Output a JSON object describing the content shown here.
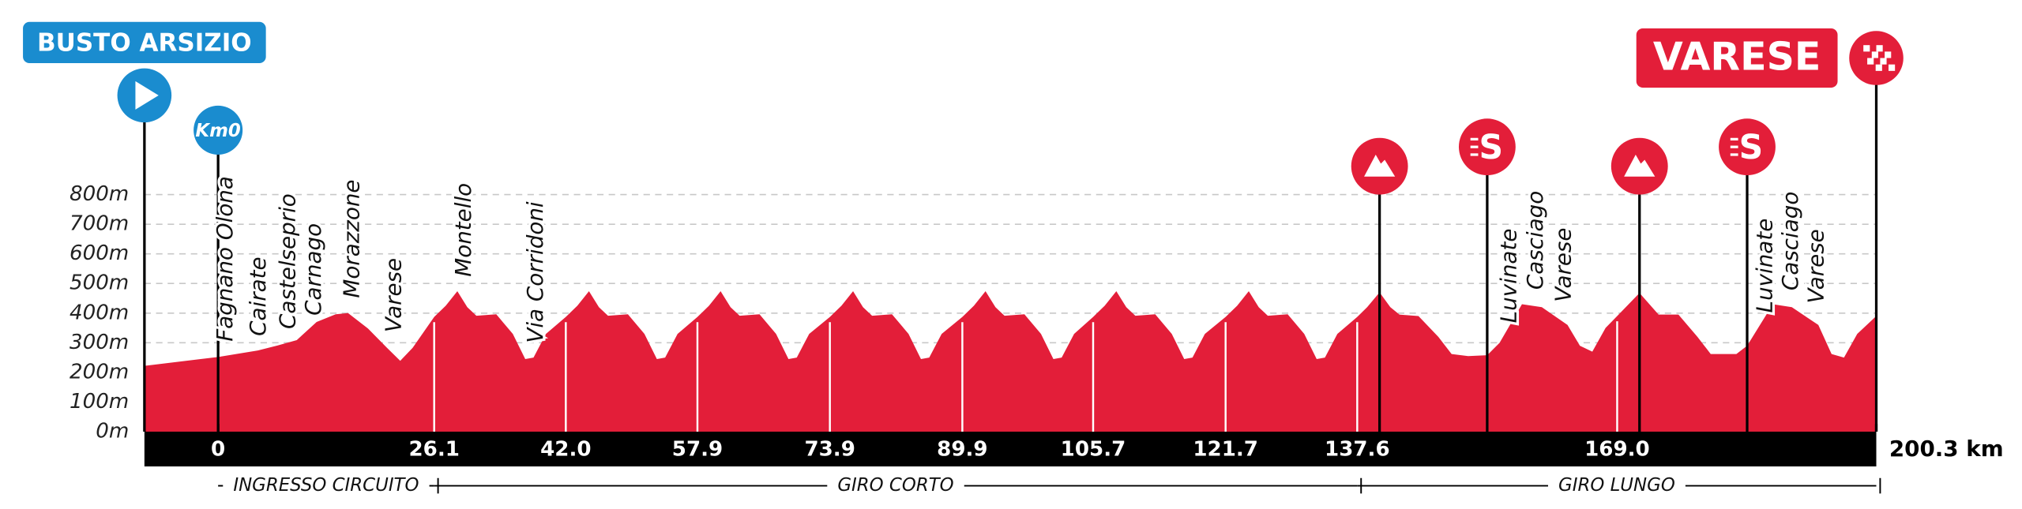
{
  "chart_data": {
    "type": "area",
    "color": "#e31e39",
    "x": [
      -8.9,
      0,
      4.8,
      7.2,
      9.5,
      11.9,
      14.2,
      15.7,
      18.1,
      20.4,
      22.0,
      23.5,
      26.1,
      27.5,
      28.9,
      30.1,
      31.2,
      33.6,
      35.6,
      37.1,
      38.1,
      39.6,
      42.0,
      43.4,
      44.8,
      46.0,
      47.1,
      49.5,
      51.5,
      53.0,
      54.0,
      55.5,
      57.9,
      59.3,
      60.7,
      61.9,
      63.0,
      65.4,
      67.4,
      68.9,
      69.9,
      71.4,
      73.9,
      75.3,
      76.7,
      77.9,
      79.0,
      81.4,
      83.4,
      84.9,
      85.9,
      87.4,
      89.9,
      91.3,
      92.7,
      93.9,
      95.0,
      97.4,
      99.4,
      100.9,
      101.9,
      103.4,
      105.7,
      107.1,
      108.5,
      109.7,
      110.8,
      113.2,
      115.2,
      116.7,
      117.7,
      119.2,
      121.7,
      123.1,
      124.5,
      125.7,
      126.8,
      129.2,
      131.2,
      132.7,
      133.7,
      135.2,
      137.6,
      138.8,
      140.3,
      141.6,
      142.7,
      145.0,
      147.4,
      149.0,
      151.0,
      153.3,
      154.8,
      157.5,
      159.9,
      163.0,
      164.5,
      166.0,
      167.6,
      169.0,
      171.7,
      174.0,
      176.4,
      178.7,
      180.3,
      183.4,
      184.7,
      187.8,
      190.1,
      193.3,
      194.9,
      196.4,
      198.0,
      200.3
    ],
    "values": [
      222,
      252,
      274,
      291,
      309,
      370,
      396,
      400,
      348,
      283,
      239,
      283,
      387,
      425,
      474,
      420,
      391,
      396,
      330,
      245,
      250,
      330,
      387,
      425,
      474,
      420,
      391,
      396,
      330,
      245,
      250,
      330,
      387,
      425,
      474,
      420,
      391,
      396,
      330,
      245,
      250,
      330,
      387,
      425,
      474,
      420,
      391,
      396,
      330,
      245,
      250,
      330,
      387,
      425,
      474,
      420,
      391,
      396,
      330,
      245,
      250,
      330,
      387,
      425,
      474,
      420,
      391,
      396,
      330,
      245,
      250,
      330,
      387,
      425,
      474,
      420,
      391,
      396,
      330,
      245,
      250,
      330,
      387,
      420,
      470,
      420,
      395,
      390,
      320,
      262,
      255,
      258,
      300,
      430,
      420,
      360,
      290,
      270,
      350,
      390,
      468,
      395,
      395,
      320,
      262,
      262,
      290,
      430,
      420,
      360,
      262,
      250,
      330,
      390
    ],
    "xlim": [
      -8.9,
      200.3
    ],
    "ylim": [
      0,
      800
    ],
    "xticks": [
      0,
      26.1,
      {
        "value": 42,
        "label": "42.0"
      },
      57.9,
      73.9,
      89.9,
      105.7,
      121.7,
      137.6,
      {
        "value": 169,
        "label": "169.0"
      },
      {
        "value": 200.3,
        "label": "200.3 km"
      }
    ],
    "yticks": [
      {
        "value": 0,
        "label": "0m"
      },
      {
        "value": 100,
        "label": "100m"
      },
      {
        "value": 200,
        "label": "200m"
      },
      {
        "value": 300,
        "label": "300m"
      },
      {
        "value": 400,
        "label": "400m"
      },
      {
        "value": 500,
        "label": "500m"
      },
      {
        "value": 600,
        "label": "600m"
      },
      {
        "value": 700,
        "label": "700m"
      },
      {
        "value": 800,
        "label": "800m"
      }
    ],
    "grid": true,
    "start": {
      "name": "BUSTO ARSIZIO",
      "x": -8.9,
      "color": "#1a8ccf"
    },
    "finish": {
      "name": "VARESE",
      "x": 200.3,
      "color": "#e31e39"
    },
    "km0": {
      "label": "Km0",
      "x": 0,
      "color": "#1a8ccf"
    },
    "markers": [
      {
        "kind": "kom",
        "x": 140.3
      },
      {
        "kind": "sprint",
        "label": "S",
        "x": 153.3
      },
      {
        "kind": "kom",
        "x": 171.7
      },
      {
        "kind": "sprint",
        "label": "S",
        "x": 184.7
      }
    ],
    "places": [
      {
        "name": "Fagnano Olona",
        "x": 0
      },
      {
        "name": "Cairate",
        "x": 4.0
      },
      {
        "name": "Castelseprio",
        "x": 7.6
      },
      {
        "name": "Carnago",
        "x": 10.7
      },
      {
        "name": "Morazzone",
        "x": 15.3
      },
      {
        "name": "Varese",
        "x": 20.4
      },
      {
        "name": "Montello",
        "x": 28.8
      },
      {
        "name": "Via Corridoni",
        "x": 37.5
      },
      {
        "name": "Luvinate",
        "x": 155.1
      },
      {
        "name": "Casciago",
        "x": 158.3
      },
      {
        "name": "Varese",
        "x": 161.7
      },
      {
        "name": "Luvinate",
        "x": 186.0
      },
      {
        "name": "Casciago",
        "x": 189.1
      },
      {
        "name": "Varese",
        "x": 192.2
      }
    ],
    "sections": [
      {
        "name": "INGRESSO CIRCUITO",
        "from": 0,
        "to": 26.1
      },
      {
        "name": "GIRO CORTO",
        "from": 26.1,
        "to": 137.6
      },
      {
        "name": "GIRO LUNGO",
        "from": 137.6,
        "to": 200.3
      }
    ]
  }
}
